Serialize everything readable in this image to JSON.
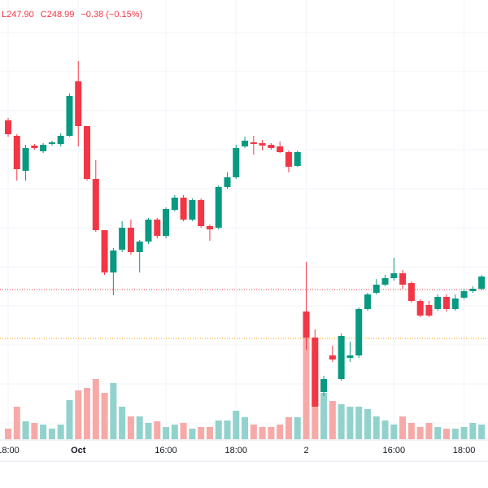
{
  "chart_data": {
    "type": "candlestick",
    "header": [
      "L247.90",
      "C248.99",
      "−0.38 (−0.15%)"
    ],
    "categories": [
      "18:00",
      null,
      null,
      null,
      null,
      null,
      null,
      null,
      "Oct",
      null,
      null,
      null,
      null,
      null,
      null,
      null,
      null,
      null,
      "16:00",
      null,
      null,
      null,
      null,
      null,
      null,
      null,
      "18:00",
      null,
      null,
      null,
      null,
      null,
      null,
      null,
      "2",
      null,
      null,
      null,
      null,
      null,
      null,
      null,
      null,
      null,
      "16:00",
      null,
      null,
      null,
      null,
      null,
      null,
      null,
      "18:00",
      null,
      null
    ],
    "open": [
      250.99,
      250.8,
      250.37,
      250.68,
      250.61,
      250.7,
      250.7,
      250.8,
      251.47,
      250.92,
      250.27,
      249.64,
      249.12,
      249.4,
      249.67,
      249.37,
      249.5,
      249.77,
      249.57,
      249.89,
      250.04,
      249.77,
      250.01,
      249.69,
      249.67,
      250.17,
      250.29,
      250.67,
      250.72,
      250.71,
      250.69,
      250.67,
      250.6,
      250.43,
      248.64,
      248.32,
      247.65,
      248.1,
      247.81,
      248.07,
      248.1,
      248.67,
      248.87,
      248.97,
      249.05,
      249.11,
      248.99,
      248.77,
      248.72,
      248.67,
      248.82,
      248.67,
      248.81,
      248.89,
      248.92
    ],
    "high": [
      251.02,
      250.82,
      250.69,
      250.7,
      250.71,
      250.74,
      250.83,
      251.32,
      251.72,
      250.92,
      250.5,
      249.64,
      249.42,
      249.75,
      249.77,
      249.52,
      249.79,
      249.79,
      249.92,
      250.07,
      250.07,
      250.03,
      250.03,
      249.71,
      250.19,
      250.35,
      250.69,
      250.79,
      250.8,
      250.75,
      250.71,
      250.73,
      250.62,
      250.62,
      249.25,
      248.42,
      247.85,
      248.22,
      248.37,
      248.27,
      248.69,
      248.87,
      249.04,
      249.09,
      249.3,
      249.15,
      249.01,
      248.79,
      248.77,
      248.85,
      248.85,
      248.85,
      248.92,
      248.95,
      249.09
    ],
    "low": [
      250.79,
      250.25,
      250.25,
      250.63,
      250.59,
      250.68,
      250.67,
      250.79,
      250.67,
      250.25,
      249.62,
      249.09,
      248.84,
      249.37,
      249.34,
      249.12,
      249.47,
      249.54,
      249.54,
      249.87,
      249.75,
      249.75,
      249.67,
      249.51,
      249.65,
      250.15,
      250.27,
      250.65,
      250.57,
      250.62,
      250.63,
      250.59,
      250.35,
      250.42,
      248.17,
      247.47,
      247.6,
      248.02,
      247.79,
      248.02,
      248.07,
      248.65,
      248.85,
      248.95,
      249.02,
      248.92,
      248.75,
      248.57,
      248.57,
      248.65,
      248.64,
      248.65,
      248.79,
      248.87,
      248.9
    ],
    "close": [
      250.82,
      250.39,
      250.65,
      250.65,
      250.69,
      250.72,
      250.8,
      251.29,
      250.92,
      250.27,
      249.64,
      249.12,
      249.39,
      249.67,
      249.37,
      249.5,
      249.77,
      249.57,
      249.9,
      250.04,
      249.77,
      250.01,
      249.69,
      249.65,
      250.17,
      250.29,
      250.65,
      250.74,
      250.7,
      250.68,
      250.65,
      250.6,
      250.42,
      250.6,
      248.32,
      247.47,
      247.81,
      248.05,
      248.34,
      248.1,
      248.67,
      248.85,
      248.97,
      249.05,
      249.11,
      248.97,
      248.77,
      248.59,
      248.59,
      248.82,
      248.67,
      248.8,
      248.89,
      248.92,
      249.07
    ],
    "volume": [
      13,
      40,
      22,
      20,
      18,
      13,
      18,
      48,
      60,
      63,
      74,
      57,
      69,
      40,
      28,
      28,
      20,
      22,
      15,
      18,
      20,
      13,
      15,
      15,
      23,
      23,
      35,
      27,
      18,
      15,
      15,
      18,
      27,
      27,
      128,
      110,
      57,
      47,
      43,
      40,
      40,
      37,
      28,
      23,
      18,
      28,
      20,
      15,
      20,
      15,
      13,
      13,
      15,
      20,
      18
    ],
    "up_color": "#089981",
    "down_color": "#f23645",
    "volume_up_color": "#92d2cc",
    "volume_down_color": "#f7a9a7",
    "ylim": [
      247.07,
      252.47
    ],
    "volume_lim": [
      0,
      540
    ],
    "price_lines": [
      {
        "value": 248.91,
        "color": "#f23645"
      },
      {
        "value": 248.31,
        "color": "#ff9800"
      }
    ],
    "grid": true
  }
}
